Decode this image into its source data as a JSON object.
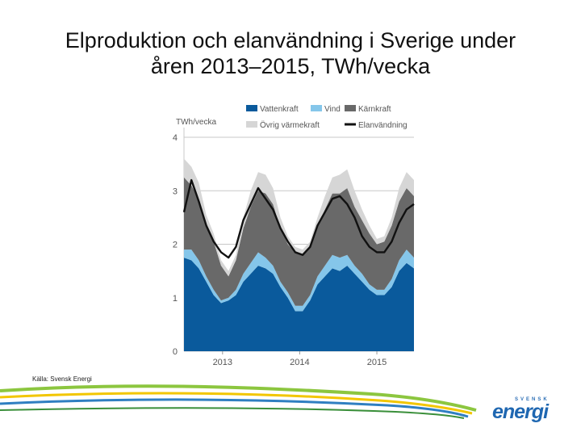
{
  "slide": {
    "title_line1": "Elproduktion och elanvändning i Sverige under",
    "title_line2": "åren 2013–2015, TWh/vecka",
    "source": "Källa: Svensk Energi",
    "logo_top": "SVENSK",
    "logo_main": "energi"
  },
  "chart_data": {
    "type": "area",
    "title": "",
    "ylabel": "TWh/vecka",
    "xlabel": "",
    "ylim": [
      0,
      4
    ],
    "yticks": [
      0,
      1,
      2,
      3,
      4
    ],
    "grid": true,
    "legend_position": "top",
    "x_unit": "week",
    "x": [
      1,
      6,
      11,
      16,
      21,
      26,
      31,
      36,
      41,
      46,
      51,
      56,
      61,
      66,
      71,
      76,
      81,
      86,
      91,
      96,
      101,
      106,
      111,
      116,
      121,
      126,
      131,
      136,
      141,
      146,
      151,
      156
    ],
    "x_tick_labels": [
      "2013",
      "2014",
      "2015"
    ],
    "x_tick_positions": [
      27,
      79,
      131
    ],
    "series": [
      {
        "name": "Vattenkraft",
        "color": "#0a5a9c",
        "values": [
          1.75,
          1.7,
          1.55,
          1.3,
          1.05,
          0.9,
          0.95,
          1.05,
          1.3,
          1.45,
          1.6,
          1.55,
          1.45,
          1.2,
          1.0,
          0.75,
          0.75,
          0.95,
          1.25,
          1.4,
          1.55,
          1.5,
          1.6,
          1.45,
          1.3,
          1.15,
          1.05,
          1.05,
          1.2,
          1.5,
          1.65,
          1.55
        ]
      },
      {
        "name": "Vind",
        "color": "#85c6ea",
        "values": [
          0.15,
          0.2,
          0.15,
          0.1,
          0.1,
          0.05,
          0.05,
          0.1,
          0.15,
          0.2,
          0.25,
          0.2,
          0.15,
          0.1,
          0.1,
          0.1,
          0.1,
          0.1,
          0.15,
          0.2,
          0.25,
          0.25,
          0.2,
          0.15,
          0.15,
          0.1,
          0.1,
          0.1,
          0.15,
          0.2,
          0.25,
          0.2
        ]
      },
      {
        "name": "Kärnkraft",
        "color": "#696969",
        "values": [
          1.35,
          1.2,
          1.15,
          0.95,
          0.9,
          0.65,
          0.4,
          0.55,
          0.85,
          1.05,
          1.15,
          1.2,
          1.15,
          1.0,
          0.9,
          1.0,
          0.95,
          0.9,
          0.95,
          1.05,
          1.15,
          1.2,
          1.25,
          1.1,
          1.0,
          0.95,
          0.85,
          0.9,
          1.0,
          1.1,
          1.15,
          1.15
        ]
      },
      {
        "name": "Övrig värmekraft",
        "color": "#d6d6d6",
        "values": [
          0.35,
          0.35,
          0.3,
          0.2,
          0.15,
          0.1,
          0.1,
          0.1,
          0.2,
          0.3,
          0.35,
          0.35,
          0.3,
          0.2,
          0.15,
          0.1,
          0.1,
          0.1,
          0.15,
          0.25,
          0.3,
          0.35,
          0.35,
          0.3,
          0.2,
          0.15,
          0.1,
          0.1,
          0.15,
          0.25,
          0.3,
          0.3
        ]
      },
      {
        "name": "Elanvändning",
        "color": "#111111",
        "kind": "line",
        "values": [
          2.6,
          3.2,
          2.8,
          2.35,
          2.05,
          1.85,
          1.75,
          1.95,
          2.45,
          2.75,
          3.05,
          2.85,
          2.65,
          2.3,
          2.05,
          1.85,
          1.8,
          1.95,
          2.35,
          2.6,
          2.85,
          2.9,
          2.75,
          2.5,
          2.15,
          1.95,
          1.85,
          1.85,
          2.05,
          2.4,
          2.65,
          2.75
        ]
      }
    ]
  }
}
